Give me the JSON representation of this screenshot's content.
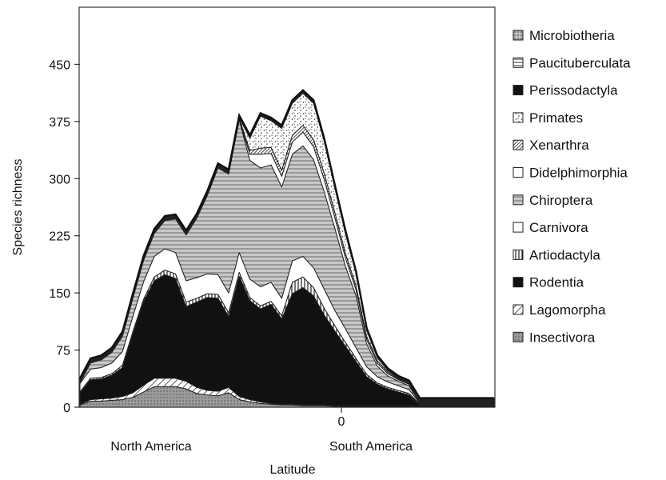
{
  "chart_data": {
    "type": "area",
    "stacked": true,
    "title": "",
    "xlabel": "Latitude",
    "ylabel": "Species richness",
    "ylim": [
      0,
      525
    ],
    "yticks": [
      0,
      75,
      150,
      225,
      300,
      375,
      450
    ],
    "x_tick_labels": [
      "0"
    ],
    "x_region_labels": [
      "North America",
      "South America"
    ],
    "grid": false,
    "legend_position": "right",
    "x": [
      1,
      2,
      3,
      4,
      5,
      6,
      7,
      8,
      9,
      10,
      11,
      12,
      13,
      14,
      15,
      16,
      17,
      18,
      19,
      20,
      21,
      22,
      23,
      24,
      25,
      26,
      27,
      28,
      29,
      30,
      31,
      32,
      33,
      34,
      35,
      36,
      37,
      38,
      39,
      40
    ],
    "series": [
      {
        "name": "Insectivora",
        "pattern": "grey-dots",
        "values": [
          3,
          8,
          8,
          9,
          10,
          13,
          20,
          27,
          27,
          27,
          24,
          18,
          16,
          15,
          19,
          10,
          7,
          5,
          4,
          3,
          3,
          2,
          2,
          2,
          1,
          1,
          1,
          1,
          1,
          1,
          1,
          1,
          1,
          1,
          1,
          1,
          1,
          1,
          1,
          1
        ]
      },
      {
        "name": "Lagomorpha",
        "pattern": "hatch",
        "values": [
          1,
          2,
          3,
          3,
          4,
          6,
          9,
          11,
          11,
          11,
          10,
          8,
          6,
          6,
          7,
          4,
          3,
          2,
          1,
          1,
          1,
          1,
          1,
          1,
          1,
          1,
          1,
          1,
          1,
          1,
          1,
          1,
          1,
          1,
          1,
          1,
          1,
          1,
          1,
          1
        ]
      },
      {
        "name": "Rodentia",
        "pattern": "black",
        "values": [
          15,
          26,
          26,
          30,
          38,
          78,
          110,
          128,
          136,
          131,
          98,
          112,
          122,
          122,
          93,
          158,
          130,
          122,
          130,
          112,
          145,
          154,
          143,
          118,
          98,
          78,
          58,
          38,
          28,
          22,
          18,
          14,
          1,
          1,
          1,
          1,
          1,
          1,
          1,
          1
        ]
      },
      {
        "name": "Artiodactyla",
        "pattern": "vertical-stripes",
        "values": [
          1,
          2,
          2,
          2,
          3,
          3,
          3,
          5,
          6,
          6,
          6,
          5,
          5,
          5,
          5,
          5,
          4,
          4,
          4,
          4,
          15,
          14,
          11,
          9,
          7,
          5,
          4,
          3,
          2,
          2,
          2,
          2,
          1,
          1,
          1,
          1,
          1,
          1,
          1,
          1
        ]
      },
      {
        "name": "Carnivora",
        "pattern": "white",
        "values": [
          11,
          12,
          13,
          14,
          18,
          20,
          23,
          27,
          28,
          28,
          28,
          27,
          26,
          26,
          26,
          26,
          24,
          25,
          25,
          23,
          28,
          27,
          26,
          25,
          20,
          18,
          14,
          10,
          8,
          7,
          6,
          5,
          1,
          1,
          1,
          1,
          1,
          1,
          1,
          1
        ]
      },
      {
        "name": "Chiroptera",
        "pattern": "horizontal-stripes",
        "values": [
          1,
          8,
          10,
          14,
          20,
          24,
          28,
          30,
          37,
          44,
          60,
          78,
          103,
          140,
          156,
          174,
          156,
          156,
          154,
          146,
          140,
          145,
          142,
          128,
          108,
          82,
          68,
          30,
          14,
          8,
          6,
          5,
          1,
          1,
          1,
          1,
          1,
          1,
          1,
          1
        ]
      },
      {
        "name": "Didelphimorphia",
        "pattern": "white",
        "values": [
          1,
          1,
          1,
          1,
          1,
          1,
          1,
          1,
          1,
          1,
          1,
          1,
          1,
          1,
          1,
          1,
          8,
          18,
          15,
          14,
          16,
          18,
          17,
          16,
          14,
          11,
          8,
          6,
          4,
          3,
          2,
          2,
          1,
          1,
          1,
          1,
          1,
          1,
          1,
          1
        ]
      },
      {
        "name": "Xenarthra",
        "pattern": "dense-hatch",
        "values": [
          1,
          1,
          1,
          1,
          1,
          1,
          1,
          1,
          1,
          1,
          1,
          1,
          1,
          1,
          1,
          1,
          5,
          8,
          8,
          8,
          9,
          9,
          9,
          8,
          7,
          6,
          5,
          4,
          3,
          2,
          1,
          1,
          1,
          1,
          1,
          1,
          1,
          1,
          1,
          1
        ]
      },
      {
        "name": "Primates",
        "pattern": "speckle",
        "values": [
          1,
          1,
          1,
          1,
          1,
          1,
          1,
          1,
          1,
          1,
          1,
          1,
          1,
          1,
          1,
          1,
          16,
          42,
          35,
          55,
          42,
          42,
          48,
          42,
          32,
          26,
          16,
          8,
          4,
          2,
          1,
          1,
          1,
          1,
          1,
          1,
          1,
          1,
          1,
          1
        ]
      },
      {
        "name": "Perissodactyla",
        "pattern": "black",
        "values": [
          1,
          1,
          1,
          1,
          1,
          1,
          1,
          1,
          1,
          1,
          1,
          1,
          1,
          1,
          1,
          1,
          2,
          2,
          2,
          2,
          2,
          2,
          2,
          2,
          2,
          2,
          1,
          1,
          1,
          1,
          1,
          1,
          1,
          1,
          1,
          1,
          1,
          1,
          1,
          1
        ]
      },
      {
        "name": "Paucituberculata",
        "pattern": "horizontal-lines",
        "values": [
          1,
          1,
          1,
          1,
          1,
          1,
          1,
          1,
          1,
          1,
          1,
          1,
          1,
          1,
          1,
          1,
          1,
          1,
          1,
          1,
          1,
          1,
          1,
          1,
          1,
          1,
          1,
          1,
          1,
          1,
          1,
          1,
          1,
          1,
          1,
          1,
          1,
          1,
          1,
          1
        ]
      },
      {
        "name": "Microbiotheria",
        "pattern": "grid",
        "values": [
          1,
          1,
          1,
          1,
          1,
          1,
          1,
          1,
          1,
          1,
          1,
          1,
          1,
          1,
          1,
          1,
          1,
          1,
          1,
          1,
          1,
          1,
          1,
          1,
          1,
          1,
          1,
          1,
          1,
          1,
          1,
          1,
          1,
          1,
          1,
          1,
          1,
          1,
          1,
          1
        ]
      }
    ]
  }
}
